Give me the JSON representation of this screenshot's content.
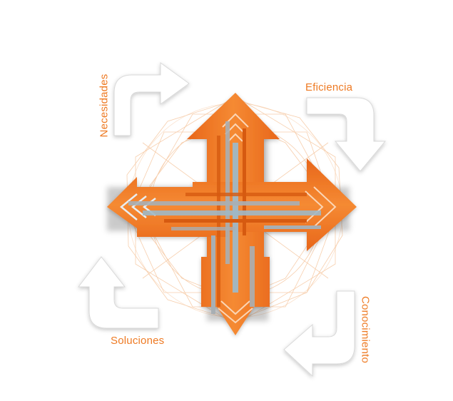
{
  "labels": {
    "necesidades": "Necesidades",
    "eficiencia": "Eficiencia",
    "conocimiento": "Conocimiento",
    "soluciones": "Soluciones"
  },
  "colors": {
    "accent": "#f07d28",
    "accent_dark": "#d85f12",
    "bar_gray": "#a8afb4",
    "bar_blue": "#9fb8c6",
    "curved_arrow_fill": "#ffffff",
    "curved_arrow_stroke": "#d9d9d9",
    "geometric_lines": "#f6c9a4"
  }
}
